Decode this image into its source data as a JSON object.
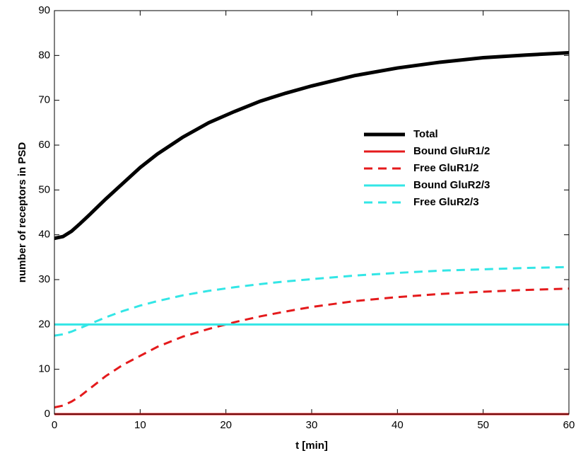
{
  "chart_data": {
    "type": "line",
    "xlabel": "t [min]",
    "ylabel": "number of receptors in PSD",
    "x": [
      0,
      1,
      2,
      3,
      4,
      6,
      8,
      10,
      12,
      15,
      18,
      21,
      24,
      27,
      30,
      35,
      40,
      45,
      50,
      55,
      60
    ],
    "series": [
      {
        "name": "Total",
        "color": "#000000",
        "linestyle": "solid",
        "linewidth": 5,
        "values": [
          39.2,
          39.6,
          40.8,
          42.5,
          44.3,
          48,
          51.5,
          55,
          58,
          61.8,
          65,
          67.5,
          69.8,
          71.6,
          73.2,
          75.5,
          77.2,
          78.5,
          79.5,
          80.1,
          80.6
        ]
      },
      {
        "name": "Bound GluR1/2",
        "color": "#e41a1c",
        "linestyle": "solid",
        "linewidth": 3,
        "values": [
          0,
          0,
          0,
          0,
          0,
          0,
          0,
          0,
          0,
          0,
          0,
          0,
          0,
          0,
          0,
          0,
          0,
          0,
          0,
          0,
          0
        ]
      },
      {
        "name": "Free GluR1/2",
        "color": "#e41a1c",
        "linestyle": "dashed",
        "linewidth": 3,
        "values": [
          1.5,
          1.9,
          2.8,
          4.0,
          5.5,
          8.5,
          11,
          13,
          15,
          17.3,
          19,
          20.5,
          21.8,
          22.9,
          23.9,
          25.2,
          26.1,
          26.8,
          27.3,
          27.7,
          28
        ]
      },
      {
        "name": "Bound GluR2/3",
        "color": "#33e6e6",
        "linestyle": "solid",
        "linewidth": 3,
        "values": [
          20,
          20,
          20,
          20,
          20,
          20,
          20,
          20,
          20,
          20,
          20,
          20,
          20,
          20,
          20,
          20,
          20,
          20,
          20,
          20,
          20
        ]
      },
      {
        "name": "Free GluR2/3",
        "color": "#33e6e6",
        "linestyle": "dashed",
        "linewidth": 3,
        "values": [
          17.5,
          17.8,
          18.4,
          19.2,
          20,
          21.6,
          23,
          24.2,
          25.2,
          26.5,
          27.5,
          28.3,
          29,
          29.6,
          30.1,
          30.9,
          31.5,
          32,
          32.3,
          32.6,
          32.8
        ]
      }
    ],
    "xlim": [
      0,
      60
    ],
    "xticks": [
      0,
      10,
      20,
      30,
      40,
      50,
      60
    ],
    "ylim": [
      0,
      90
    ],
    "yticks": [
      0,
      10,
      20,
      30,
      40,
      50,
      60,
      70,
      80,
      90
    ],
    "grid": false,
    "legend": "center-right"
  }
}
